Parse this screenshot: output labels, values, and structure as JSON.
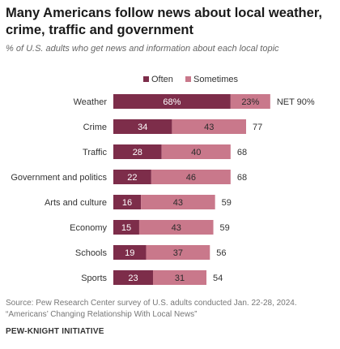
{
  "title": "Many Americans follow news about local weather, crime, traffic and government",
  "subtitle": "% of U.S. adults who get news and information about each local topic",
  "source_line1": "Source: Pew Research Center survey of U.S. adults conducted Jan. 22-28, 2024.",
  "source_line2": "“Americans’ Changing Relationship With Local News”",
  "brand": "PEW-KNIGHT INITIATIVE",
  "colors": {
    "often": "#7d2d4a",
    "sometimes": "#c9788b",
    "label_on_light": "#2b2b2b",
    "label_on_dark": "#ffffff"
  },
  "chart_data": {
    "type": "bar",
    "orientation": "horizontal",
    "stacked": true,
    "categories": [
      "Weather",
      "Crime",
      "Traffic",
      "Government and politics",
      "Arts and culture",
      "Economy",
      "Schools",
      "Sports"
    ],
    "series": [
      {
        "name": "Often",
        "values": [
          68,
          34,
          28,
          22,
          16,
          15,
          19,
          23
        ]
      },
      {
        "name": "Sometimes",
        "values": [
          23,
          43,
          40,
          46,
          43,
          43,
          37,
          31
        ]
      }
    ],
    "net": [
      90,
      77,
      68,
      68,
      59,
      59,
      56,
      54
    ],
    "value_labels": {
      "often": [
        "68%",
        "34",
        "28",
        "22",
        "16",
        "15",
        "19",
        "23"
      ],
      "sometimes": [
        "23%",
        "43",
        "40",
        "46",
        "43",
        "43",
        "37",
        "31"
      ],
      "net": [
        "NET 90%",
        "77",
        "68",
        "68",
        "59",
        "59",
        "56",
        "54"
      ]
    },
    "legend_placement": "top",
    "grid": false,
    "xlim": [
      0,
      100
    ]
  }
}
